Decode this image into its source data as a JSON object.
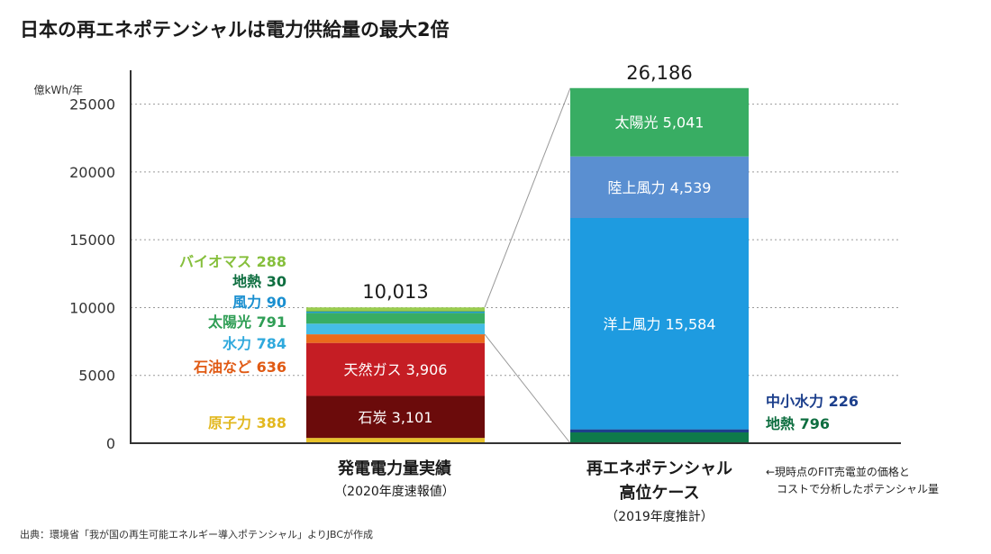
{
  "title": "日本の再エネポテンシャルは電力供給量の最大2倍",
  "unit_label": "億kWh/年",
  "source": "出典：環境省「我が国の再生可能エネルギー導入ポテンシャル」よりJBCが作成",
  "annotation": {
    "line1": "←現時点のFIT売電並の価格と",
    "line2": "コストで分析したポテンシャル量"
  },
  "categories": [
    {
      "line1": "発電電力量実績",
      "line2": "",
      "sub": "（2020年度速報値）"
    },
    {
      "line1": "再エネポテンシャル",
      "line2": "高位ケース",
      "sub": "（2019年度推計）"
    }
  ],
  "chart_data": {
    "type": "bar",
    "stacked": true,
    "ylim": [
      0,
      27500
    ],
    "yticks": [
      0,
      5000,
      10000,
      15000,
      20000,
      25000
    ],
    "ytick_labels": [
      "0",
      "5000",
      "10000",
      "15000",
      "20000",
      "25000"
    ],
    "ylabel": "億kWh/年",
    "grid": true,
    "categories": [
      "発電電力量実績（2020年度速報値）",
      "再エネポテンシャル高位ケース（2019年度推計）"
    ],
    "totals": [
      "10,013",
      "26,186"
    ],
    "bars": [
      {
        "segments": [
          {
            "name": "原子力",
            "value": 388,
            "value_label": "388",
            "color": "#e8c22a",
            "label_pos": "side",
            "label_color": "#e2b820"
          },
          {
            "name": "石炭",
            "value": 3101,
            "value_label": "3,101",
            "color": "#6b0b0b",
            "label_pos": "inside"
          },
          {
            "name": "天然ガス",
            "value": 3906,
            "value_label": "3,906",
            "color": "#c51d24",
            "label_pos": "inside"
          },
          {
            "name": "石油など",
            "value": 636,
            "value_label": "636",
            "color": "#ea6b1c",
            "label_pos": "side",
            "label_color": "#e05a14"
          },
          {
            "name": "水力",
            "value": 784,
            "value_label": "784",
            "color": "#45bde6",
            "label_pos": "side",
            "label_color": "#2fa9dd"
          },
          {
            "name": "太陽光",
            "value": 791,
            "value_label": "791",
            "color": "#38ad63",
            "label_pos": "side",
            "label_color": "#2f9e55"
          },
          {
            "name": "風力",
            "value": 90,
            "value_label": "90",
            "color": "#1a9ad6",
            "label_pos": "side",
            "label_color": "#1a8fd0"
          },
          {
            "name": "地熱",
            "value": 30,
            "value_label": "30",
            "color": "#0e7a4a",
            "label_pos": "side",
            "label_color": "#0e6e40"
          },
          {
            "name": "バイオマス",
            "value": 288,
            "value_label": "288",
            "color": "#9acd4f",
            "label_pos": "side",
            "label_color": "#86bf3c"
          }
        ]
      },
      {
        "segments": [
          {
            "name": "地熱",
            "value": 796,
            "value_label": "796",
            "color": "#0e7a4a",
            "label_pos": "side",
            "label_color": "#0e6e40"
          },
          {
            "name": "中小水力",
            "value": 226,
            "value_label": "226",
            "color": "#1c3f8c",
            "label_pos": "side",
            "label_color": "#1c3f8c"
          },
          {
            "name": "洋上風力",
            "value": 15584,
            "value_label": "15,584",
            "color": "#1e9be0",
            "label_pos": "inside"
          },
          {
            "name": "陸上風力",
            "value": 4539,
            "value_label": "4,539",
            "color": "#5a8fd1",
            "label_pos": "inside"
          },
          {
            "name": "太陽光",
            "value": 5041,
            "value_label": "5,041",
            "color": "#38ad63",
            "label_pos": "inside"
          }
        ]
      }
    ]
  }
}
